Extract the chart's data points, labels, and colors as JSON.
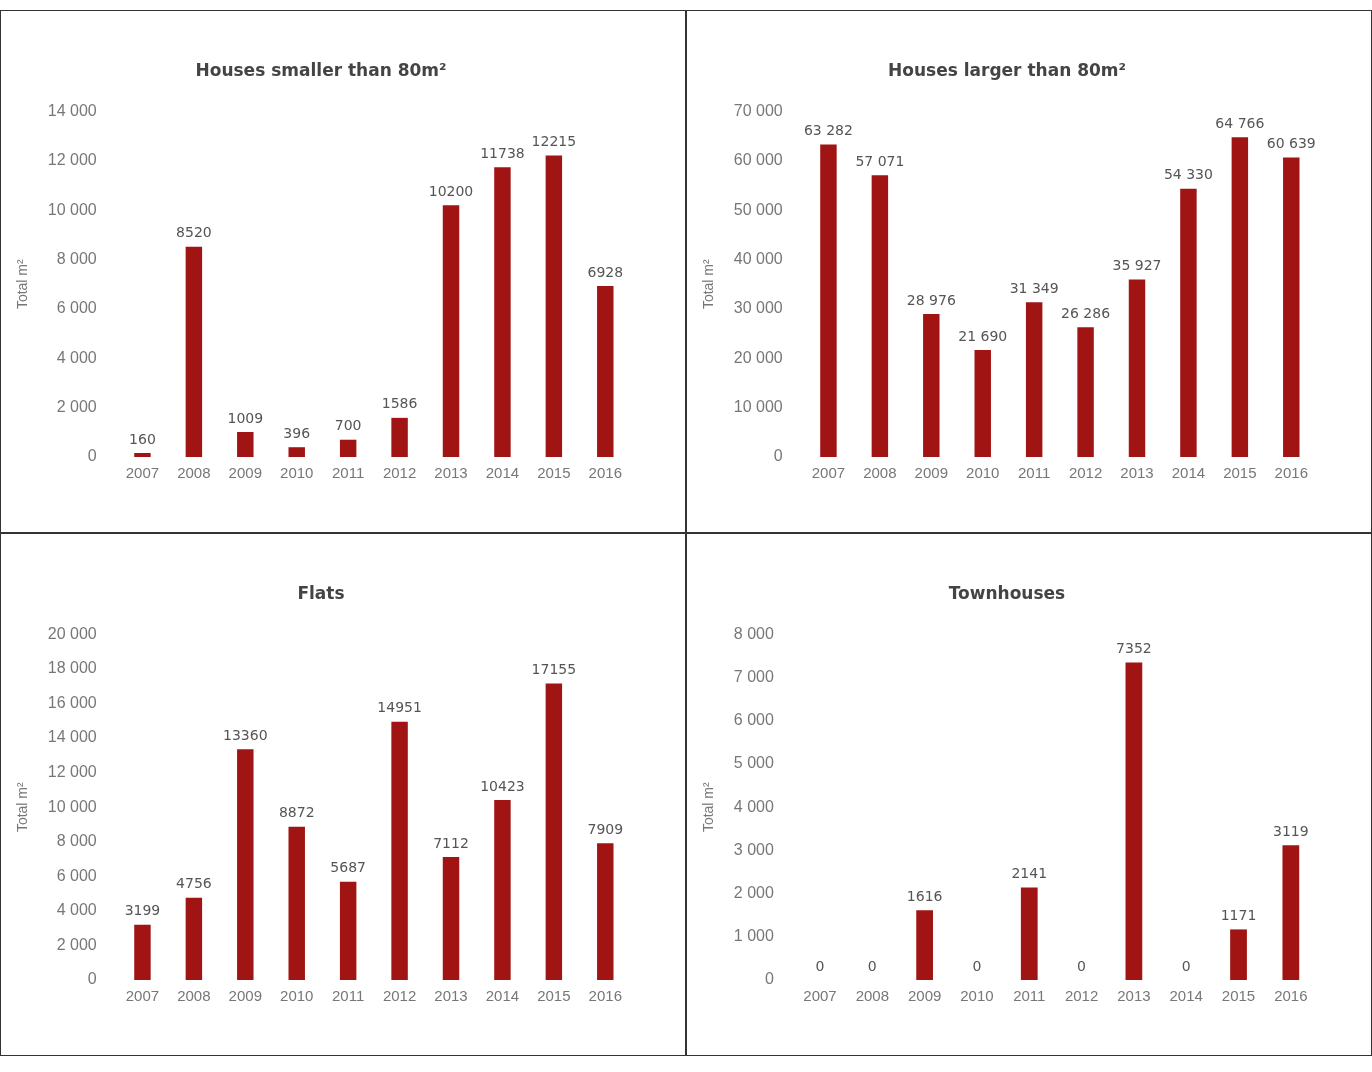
{
  "chart_data": [
    {
      "type": "bar",
      "title": "Houses smaller than 80m²",
      "ylabel": "Total m²",
      "categories": [
        "2007",
        "2008",
        "2009",
        "2010",
        "2011",
        "2012",
        "2013",
        "2014",
        "2015",
        "2016"
      ],
      "values": [
        160,
        8520,
        1009,
        396,
        700,
        1586,
        10200,
        11738,
        12215,
        6928
      ],
      "color": "#a01414",
      "ylim": [
        0,
        14000
      ],
      "yticks": [
        {
          "value": 0,
          "label": "0"
        },
        {
          "value": 2000,
          "label": "2 000"
        },
        {
          "value": 4000,
          "label": "4 000"
        },
        {
          "value": 6000,
          "label": "6 000"
        },
        {
          "value": 8000,
          "label": "8 000"
        },
        {
          "value": 10000,
          "label": "10 000"
        },
        {
          "value": 12000,
          "label": "12 000"
        },
        {
          "value": 14000,
          "label": "14 000"
        }
      ],
      "data_labels": true
    },
    {
      "type": "bar",
      "title": "Houses larger than 80m²",
      "ylabel": "Total m²",
      "categories": [
        "2007",
        "2008",
        "2009",
        "2010",
        "2011",
        "2012",
        "2013",
        "2014",
        "2015",
        "2016"
      ],
      "values": [
        63282,
        57071,
        28976,
        21690,
        31349,
        26286,
        35927,
        54330,
        64766,
        60639
      ],
      "value_labels": [
        "63 282",
        "57 071",
        "28 976",
        "21 690",
        "31 349",
        "26 286",
        "35 927",
        "54 330",
        "64 766",
        "60 639"
      ],
      "color": "#a01414",
      "ylim": [
        0,
        70000
      ],
      "yticks": [
        {
          "value": 0,
          "label": "0"
        },
        {
          "value": 10000,
          "label": "10 000"
        },
        {
          "value": 20000,
          "label": "20 000"
        },
        {
          "value": 30000,
          "label": "30 000"
        },
        {
          "value": 40000,
          "label": "40 000"
        },
        {
          "value": 50000,
          "label": "50 000"
        },
        {
          "value": 60000,
          "label": "60 000"
        },
        {
          "value": 70000,
          "label": "70 000"
        }
      ]
    },
    {
      "type": "bar",
      "title": "Flats",
      "ylabel": "Total m²",
      "categories": [
        "2007",
        "2008",
        "2009",
        "2010",
        "2011",
        "2012",
        "2013",
        "2014",
        "2015",
        "2016"
      ],
      "values": [
        3199,
        4756,
        13360,
        8872,
        5687,
        14951,
        7112,
        10423,
        17155,
        7909
      ],
      "color": "#a01414",
      "ylim": [
        0,
        20000
      ],
      "yticks": [
        {
          "value": 0,
          "label": "0"
        },
        {
          "value": 2000,
          "label": "2 000"
        },
        {
          "value": 4000,
          "label": "4 000"
        },
        {
          "value": 6000,
          "label": "6 000"
        },
        {
          "value": 8000,
          "label": "8 000"
        },
        {
          "value": 10000,
          "label": "10 000"
        },
        {
          "value": 12000,
          "label": "12 000"
        },
        {
          "value": 14000,
          "label": "14 000"
        },
        {
          "value": 16000,
          "label": "16 000"
        },
        {
          "value": 18000,
          "label": "18 000"
        },
        {
          "value": 20000,
          "label": "20 000"
        }
      ],
      "data_labels": true
    },
    {
      "type": "bar",
      "title": "Townhouses",
      "ylabel": "Total m²",
      "categories": [
        "2007",
        "2008",
        "2009",
        "2010",
        "2011",
        "2012",
        "2013",
        "2014",
        "2015",
        "2016"
      ],
      "values": [
        0,
        0,
        1616,
        0,
        2141,
        0,
        7352,
        0,
        1171,
        3119
      ],
      "color": "#a01414",
      "ylim": [
        0,
        8000
      ],
      "yticks": [
        {
          "value": 0,
          "label": "0"
        },
        {
          "value": 1000,
          "label": "1 000"
        },
        {
          "value": 2000,
          "label": "2 000"
        },
        {
          "value": 3000,
          "label": "3 000"
        },
        {
          "value": 4000,
          "label": "4 000"
        },
        {
          "value": 5000,
          "label": "5 000"
        },
        {
          "value": 6000,
          "label": "6 000"
        },
        {
          "value": 7000,
          "label": "7 000"
        },
        {
          "value": 8000,
          "label": "8 000"
        }
      ],
      "data_labels": true
    }
  ]
}
